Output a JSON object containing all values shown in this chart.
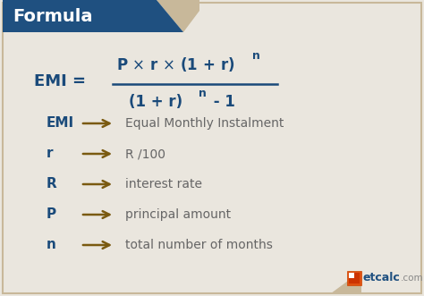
{
  "bg_color": "#eae6de",
  "header_bg": "#1f5080",
  "header_text": "Formula",
  "header_text_color": "#ffffff",
  "formula_color": "#1a4a7a",
  "arrow_color": "#7a5a10",
  "desc_color": "#666666",
  "border_color": "#c8b89a",
  "variables": [
    "EMI",
    "r",
    "R",
    "P",
    "n"
  ],
  "descriptions": [
    "Equal Monthly Instalment",
    "R /100",
    "interest rate",
    "principal amount",
    "total number of months"
  ],
  "logo_orange": "#e05010",
  "logo_blue": "#1f5080",
  "logo_gray": "#888888"
}
